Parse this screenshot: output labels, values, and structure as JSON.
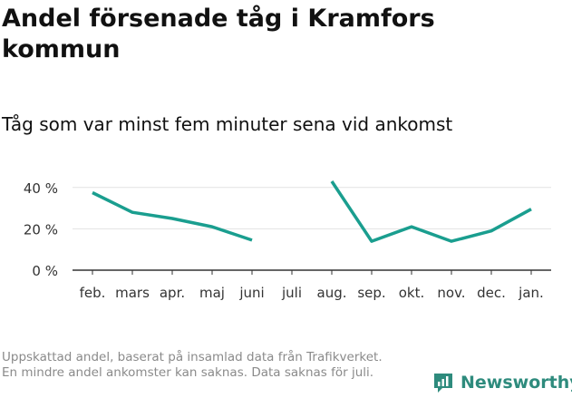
{
  "title": "Andel försenade tåg i Kramfors kommun",
  "subtitle": "Tåg som var minst fem minuter sena vid ankomst",
  "footnote": "Uppskattad andel, baserat på insamlad data från Trafikverket. En mindre andel ankomster kan saknas. Data saknas för juli.",
  "brand": "Newsworthy",
  "colors": {
    "line": "#1a9e8f",
    "grid": "#e2e2e2",
    "axis": "#333333",
    "brand": "#2e8b7d"
  },
  "chart_data": {
    "type": "line",
    "categories": [
      "feb.",
      "mars",
      "apr.",
      "maj",
      "juni",
      "juli",
      "aug.",
      "sep.",
      "okt.",
      "nov.",
      "dec.",
      "jan."
    ],
    "series": [
      {
        "values": [
          37.5,
          28,
          25,
          21,
          14.5,
          null,
          43,
          14,
          21,
          14,
          19,
          29.5
        ]
      }
    ],
    "ylim": [
      0,
      50
    ],
    "yticks": [
      0,
      20,
      40
    ],
    "ytick_labels": [
      "0 %",
      "20 %",
      "40 %"
    ],
    "grid": true,
    "legend": "none"
  }
}
